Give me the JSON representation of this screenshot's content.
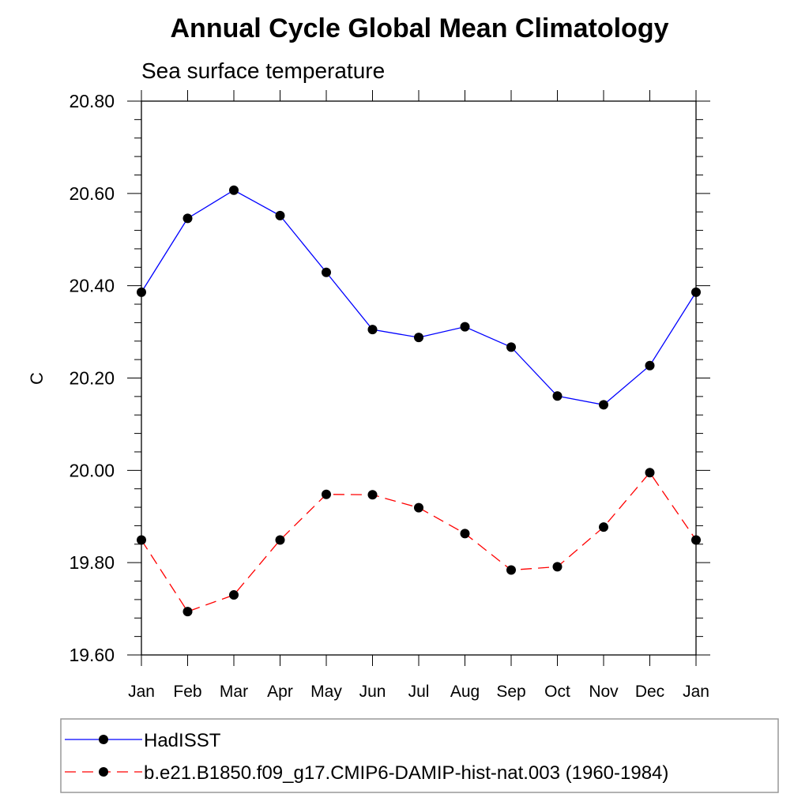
{
  "chart_data": {
    "type": "line",
    "title": "Annual Cycle Global Mean Climatology",
    "subtitle": "Sea surface temperature",
    "xlabel": "",
    "ylabel": "C",
    "categories": [
      "Jan",
      "Feb",
      "Mar",
      "Apr",
      "May",
      "Jun",
      "Jul",
      "Aug",
      "Sep",
      "Oct",
      "Nov",
      "Dec",
      "Jan"
    ],
    "ylim": [
      19.6,
      20.8
    ],
    "yticks": [
      "19.60",
      "19.80",
      "20.00",
      "20.20",
      "20.40",
      "20.60",
      "20.80"
    ],
    "ytick_values": [
      19.6,
      19.8,
      20.0,
      20.2,
      20.4,
      20.6,
      20.8
    ],
    "grid": false,
    "legend_position": "bottom",
    "series": [
      {
        "name": "HadISST",
        "color": "#0000ff",
        "style": "solid",
        "marker": "circle",
        "values": [
          20.386,
          20.546,
          20.607,
          20.552,
          20.429,
          20.305,
          20.288,
          20.311,
          20.267,
          20.161,
          20.142,
          20.227,
          20.386
        ]
      },
      {
        "name": "b.e21.B1850.f09_g17.CMIP6-DAMIP-hist-nat.003 (1960-1984)",
        "color": "#ff0000",
        "style": "dashed",
        "marker": "circle",
        "values": [
          19.849,
          19.694,
          19.73,
          19.849,
          19.948,
          19.947,
          19.919,
          19.863,
          19.784,
          19.791,
          19.877,
          19.995,
          19.849
        ]
      }
    ]
  }
}
